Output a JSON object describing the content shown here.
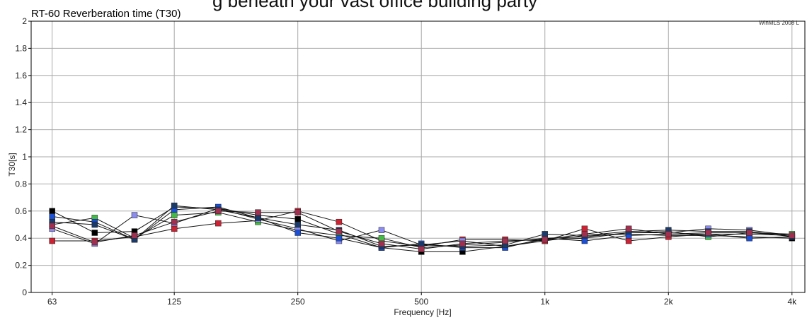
{
  "top_caption": "g beneath your vast office building party",
  "watermark": "WinMLS 2008 L",
  "chart_data": {
    "type": "line",
    "title": "RT-60 Reverberation time (T30)",
    "xlabel": "Frequency [Hz]",
    "ylabel": "T30[s]",
    "x_scale": "log",
    "xlim": [
      56,
      4300
    ],
    "ylim": [
      0,
      2
    ],
    "x_ticks": [
      {
        "value": 63,
        "label": "63"
      },
      {
        "value": 125,
        "label": "125"
      },
      {
        "value": 250,
        "label": "250"
      },
      {
        "value": 500,
        "label": "500"
      },
      {
        "value": 1000,
        "label": "1k"
      },
      {
        "value": 2000,
        "label": "2k"
      },
      {
        "value": 4000,
        "label": "4k"
      }
    ],
    "y_ticks": [
      {
        "value": 0,
        "label": "0"
      },
      {
        "value": 0.2,
        "label": "0.2"
      },
      {
        "value": 0.4,
        "label": "0.4"
      },
      {
        "value": 0.6,
        "label": "0.6"
      },
      {
        "value": 0.8,
        "label": "0.8"
      },
      {
        "value": 1,
        "label": "1"
      },
      {
        "value": 1.2,
        "label": "1.2"
      },
      {
        "value": 1.4,
        "label": "1.4"
      },
      {
        "value": 1.6,
        "label": "1.6"
      },
      {
        "value": 1.8,
        "label": "1.8"
      },
      {
        "value": 2,
        "label": "2"
      }
    ],
    "grid": true,
    "x": [
      63,
      80,
      100,
      125,
      160,
      200,
      250,
      315,
      400,
      500,
      630,
      800,
      1000,
      1250,
      1600,
      2000,
      2500,
      3150,
      4000
    ],
    "series": [
      {
        "color": "#000000",
        "values": [
          0.6,
          0.44,
          0.45,
          0.63,
          0.62,
          0.57,
          0.54,
          0.43,
          0.33,
          0.3,
          0.3,
          0.34,
          0.38,
          0.42,
          0.43,
          0.42,
          0.42,
          0.41,
          0.4
        ]
      },
      {
        "color": "#cc2233",
        "values": [
          0.38,
          0.38,
          0.41,
          0.47,
          0.51,
          0.53,
          0.6,
          0.52,
          0.38,
          0.34,
          0.39,
          0.39,
          0.38,
          0.47,
          0.38,
          0.41,
          0.43,
          0.43,
          0.42
        ]
      },
      {
        "color": "#44bb44",
        "values": [
          0.5,
          0.55,
          0.4,
          0.57,
          0.59,
          0.52,
          0.46,
          0.42,
          0.4,
          0.33,
          0.35,
          0.37,
          0.4,
          0.41,
          0.44,
          0.45,
          0.41,
          0.44,
          0.43
        ]
      },
      {
        "color": "#8c8cf0",
        "values": [
          0.47,
          0.36,
          0.57,
          0.51,
          0.62,
          0.54,
          0.47,
          0.38,
          0.46,
          0.35,
          0.38,
          0.34,
          0.39,
          0.4,
          0.44,
          0.44,
          0.47,
          0.46,
          0.42
        ]
      },
      {
        "color": "#1a4fd6",
        "values": [
          0.56,
          0.52,
          0.39,
          0.61,
          0.63,
          0.55,
          0.44,
          0.4,
          0.33,
          0.36,
          0.33,
          0.33,
          0.4,
          0.38,
          0.42,
          0.43,
          0.43,
          0.4,
          0.41
        ]
      },
      {
        "color": "#1a3a6a",
        "values": [
          0.52,
          0.5,
          0.39,
          0.64,
          0.61,
          0.55,
          0.5,
          0.46,
          0.34,
          0.35,
          0.34,
          0.35,
          0.43,
          0.42,
          0.45,
          0.46,
          0.45,
          0.45,
          0.41
        ]
      },
      {
        "color": "#a03050",
        "values": [
          0.49,
          0.37,
          0.42,
          0.52,
          0.6,
          0.59,
          0.59,
          0.45,
          0.36,
          0.32,
          0.36,
          0.38,
          0.39,
          0.43,
          0.47,
          0.43,
          0.44,
          0.44,
          0.42
        ]
      }
    ]
  }
}
